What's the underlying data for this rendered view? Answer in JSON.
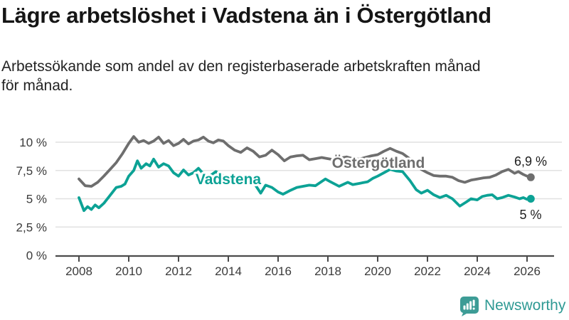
{
  "header": {
    "title": "Lägre arbetslöshet i Vadstena än i Östergötland",
    "subtitle": "Arbetssökande som andel av den registerbaserade arbetskraften månad\nför månad."
  },
  "chart_data": {
    "type": "line",
    "title": "Lägre arbetslöshet i Vadstena än i Östergötland",
    "xlabel": "",
    "ylabel": "",
    "grid": true,
    "legend": "inline-labels",
    "x_axis": {
      "ticks": [
        2008,
        2010,
        2012,
        2014,
        2016,
        2018,
        2020,
        2022,
        2024,
        2026
      ],
      "range": [
        2007.1,
        2027.1
      ]
    },
    "y_axis": {
      "range": [
        0,
        11.5
      ],
      "ticks": [
        {
          "value": 0,
          "label": "0 %"
        },
        {
          "value": 2.5,
          "label": "2,5 %"
        },
        {
          "value": 5,
          "label": "5 %"
        },
        {
          "value": 7.5,
          "label": "7,5 %"
        },
        {
          "value": 10,
          "label": "10 %"
        }
      ]
    },
    "series": [
      {
        "name": "Östergötland",
        "color": "#6e6e6e",
        "end_label": "6,9 %",
        "end_value": 6.9,
        "points": [
          [
            2008.0,
            6.75
          ],
          [
            2008.25,
            6.15
          ],
          [
            2008.5,
            6.1
          ],
          [
            2008.75,
            6.45
          ],
          [
            2009.0,
            7.0
          ],
          [
            2009.25,
            7.6
          ],
          [
            2009.5,
            8.2
          ],
          [
            2009.75,
            9.0
          ],
          [
            2010.0,
            9.9
          ],
          [
            2010.2,
            10.5
          ],
          [
            2010.4,
            10.0
          ],
          [
            2010.6,
            10.15
          ],
          [
            2010.8,
            9.9
          ],
          [
            2011.0,
            10.1
          ],
          [
            2011.2,
            10.45
          ],
          [
            2011.4,
            9.9
          ],
          [
            2011.6,
            10.15
          ],
          [
            2011.8,
            9.7
          ],
          [
            2012.0,
            9.9
          ],
          [
            2012.2,
            10.25
          ],
          [
            2012.4,
            9.85
          ],
          [
            2012.6,
            10.1
          ],
          [
            2012.8,
            10.2
          ],
          [
            2013.0,
            10.45
          ],
          [
            2013.2,
            10.1
          ],
          [
            2013.4,
            9.95
          ],
          [
            2013.6,
            10.2
          ],
          [
            2013.8,
            10.1
          ],
          [
            2014.0,
            9.7
          ],
          [
            2014.25,
            9.3
          ],
          [
            2014.5,
            9.1
          ],
          [
            2014.75,
            9.5
          ],
          [
            2015.0,
            9.2
          ],
          [
            2015.25,
            8.7
          ],
          [
            2015.5,
            8.85
          ],
          [
            2015.75,
            9.3
          ],
          [
            2016.0,
            8.9
          ],
          [
            2016.25,
            8.35
          ],
          [
            2016.5,
            8.7
          ],
          [
            2016.75,
            8.8
          ],
          [
            2017.0,
            8.85
          ],
          [
            2017.25,
            8.45
          ],
          [
            2017.5,
            8.55
          ],
          [
            2017.75,
            8.65
          ],
          [
            2018.0,
            8.55
          ],
          [
            2018.25,
            8.45
          ],
          [
            2018.5,
            8.6
          ],
          [
            2018.75,
            8.7
          ],
          [
            2019.0,
            8.55
          ],
          [
            2019.25,
            8.5
          ],
          [
            2019.5,
            8.65
          ],
          [
            2019.75,
            8.8
          ],
          [
            2020.0,
            8.9
          ],
          [
            2020.25,
            9.2
          ],
          [
            2020.5,
            9.45
          ],
          [
            2020.75,
            9.2
          ],
          [
            2021.0,
            9.0
          ],
          [
            2021.25,
            8.6
          ],
          [
            2021.5,
            8.1
          ],
          [
            2021.75,
            7.6
          ],
          [
            2022.0,
            7.3
          ],
          [
            2022.25,
            7.05
          ],
          [
            2022.5,
            7.0
          ],
          [
            2022.75,
            7.0
          ],
          [
            2023.0,
            6.9
          ],
          [
            2023.25,
            6.6
          ],
          [
            2023.5,
            6.45
          ],
          [
            2023.75,
            6.65
          ],
          [
            2024.0,
            6.75
          ],
          [
            2024.25,
            6.85
          ],
          [
            2024.5,
            6.9
          ],
          [
            2024.75,
            7.1
          ],
          [
            2025.0,
            7.4
          ],
          [
            2025.25,
            7.6
          ],
          [
            2025.5,
            7.25
          ],
          [
            2025.65,
            7.4
          ],
          [
            2025.85,
            7.15
          ],
          [
            2026.0,
            7.0
          ],
          [
            2026.15,
            6.9
          ]
        ]
      },
      {
        "name": "Vadstena",
        "color": "#0ca295",
        "end_label": "5 %",
        "end_value": 5.0,
        "points": [
          [
            2008.0,
            5.1
          ],
          [
            2008.2,
            3.95
          ],
          [
            2008.35,
            4.3
          ],
          [
            2008.5,
            4.05
          ],
          [
            2008.65,
            4.45
          ],
          [
            2008.8,
            4.2
          ],
          [
            2009.0,
            4.6
          ],
          [
            2009.25,
            5.3
          ],
          [
            2009.5,
            6.0
          ],
          [
            2009.7,
            6.1
          ],
          [
            2009.85,
            6.3
          ],
          [
            2010.0,
            7.0
          ],
          [
            2010.2,
            7.5
          ],
          [
            2010.35,
            8.35
          ],
          [
            2010.5,
            7.7
          ],
          [
            2010.7,
            8.1
          ],
          [
            2010.85,
            7.9
          ],
          [
            2011.0,
            8.5
          ],
          [
            2011.2,
            7.8
          ],
          [
            2011.4,
            8.1
          ],
          [
            2011.6,
            7.9
          ],
          [
            2011.8,
            7.3
          ],
          [
            2012.0,
            7.0
          ],
          [
            2012.2,
            7.55
          ],
          [
            2012.4,
            7.1
          ],
          [
            2012.6,
            7.3
          ],
          [
            2012.8,
            7.7
          ],
          [
            2013.0,
            7.2
          ],
          [
            2013.25,
            7.0
          ],
          [
            2013.5,
            7.4
          ],
          [
            2013.75,
            7.1
          ],
          [
            2014.0,
            6.8
          ],
          [
            2014.25,
            7.0
          ],
          [
            2014.5,
            6.6
          ],
          [
            2014.75,
            6.4
          ],
          [
            2015.0,
            6.5
          ],
          [
            2015.3,
            5.5
          ],
          [
            2015.5,
            6.2
          ],
          [
            2015.75,
            6.0
          ],
          [
            2016.0,
            5.6
          ],
          [
            2016.2,
            5.4
          ],
          [
            2016.5,
            5.75
          ],
          [
            2016.75,
            6.0
          ],
          [
            2017.0,
            6.1
          ],
          [
            2017.25,
            6.2
          ],
          [
            2017.5,
            6.15
          ],
          [
            2017.9,
            6.75
          ],
          [
            2018.1,
            6.5
          ],
          [
            2018.45,
            6.1
          ],
          [
            2018.8,
            6.45
          ],
          [
            2019.0,
            6.25
          ],
          [
            2019.25,
            6.35
          ],
          [
            2019.6,
            6.5
          ],
          [
            2019.8,
            6.8
          ],
          [
            2020.0,
            7.0
          ],
          [
            2020.25,
            7.3
          ],
          [
            2020.5,
            7.6
          ],
          [
            2020.75,
            7.45
          ],
          [
            2021.0,
            7.4
          ],
          [
            2021.3,
            6.6
          ],
          [
            2021.55,
            5.8
          ],
          [
            2021.75,
            5.5
          ],
          [
            2022.0,
            5.75
          ],
          [
            2022.25,
            5.35
          ],
          [
            2022.5,
            5.1
          ],
          [
            2022.75,
            5.3
          ],
          [
            2023.0,
            5.0
          ],
          [
            2023.3,
            4.35
          ],
          [
            2023.55,
            4.7
          ],
          [
            2023.75,
            5.0
          ],
          [
            2024.0,
            4.9
          ],
          [
            2024.2,
            5.2
          ],
          [
            2024.4,
            5.3
          ],
          [
            2024.6,
            5.35
          ],
          [
            2024.8,
            5.0
          ],
          [
            2025.0,
            5.1
          ],
          [
            2025.25,
            5.3
          ],
          [
            2025.5,
            5.15
          ],
          [
            2025.7,
            5.0
          ],
          [
            2025.85,
            5.1
          ],
          [
            2026.0,
            4.95
          ],
          [
            2026.15,
            5.0
          ]
        ]
      }
    ]
  },
  "footer": {
    "brand": "Newsworthy",
    "brand_color": "#2f9a94",
    "logo_icon": "newsworthy-chart-bubble-icon"
  }
}
